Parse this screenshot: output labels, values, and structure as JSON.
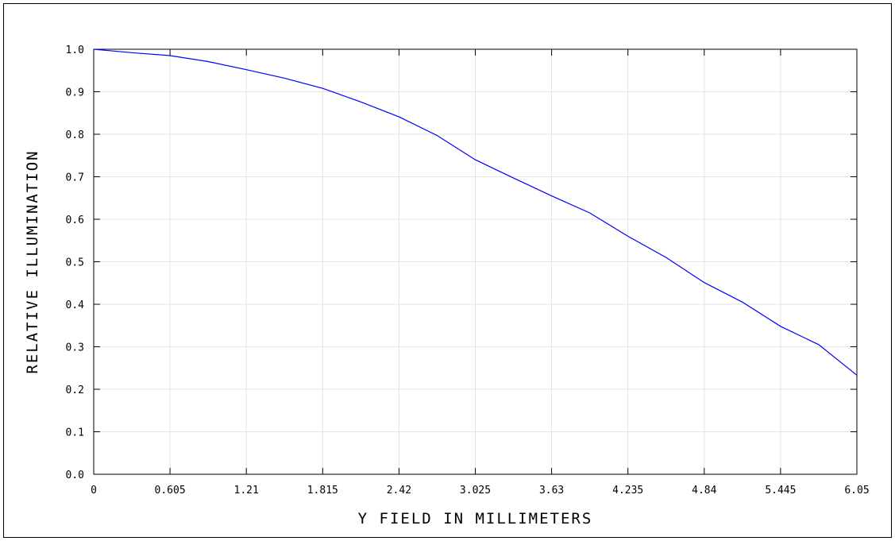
{
  "chart_data": {
    "type": "line",
    "xlabel": "Y FIELD IN MILLIMETERS",
    "ylabel": "RELATIVE ILLUMINATION",
    "xlim": [
      0,
      6.05
    ],
    "ylim": [
      0,
      1.0
    ],
    "grid": true,
    "x_tick_labels": [
      "0",
      "0.605",
      "1.21",
      "1.815",
      "2.42",
      "3.025",
      "3.63",
      "4.235",
      "4.84",
      "5.445",
      "6.05"
    ],
    "y_tick_labels": [
      "0.0",
      "0.1",
      "0.2",
      "0.3",
      "0.4",
      "0.5",
      "0.6",
      "0.7",
      "0.8",
      "0.9",
      "1.0"
    ],
    "series": [
      {
        "color": "#0000ff",
        "x": [
          0,
          0.3025,
          0.605,
          0.9075,
          1.21,
          1.5125,
          1.815,
          2.1175,
          2.42,
          2.7225,
          3.025,
          3.3275,
          3.63,
          3.9325,
          4.235,
          4.5375,
          4.84,
          5.1425,
          5.445,
          5.7475,
          6.05
        ],
        "y": [
          1.0,
          0.992,
          0.985,
          0.971,
          0.952,
          0.932,
          0.908,
          0.876,
          0.841,
          0.797,
          0.74,
          0.697,
          0.655,
          0.615,
          0.56,
          0.51,
          0.451,
          0.405,
          0.348,
          0.305,
          0.233
        ]
      }
    ]
  }
}
